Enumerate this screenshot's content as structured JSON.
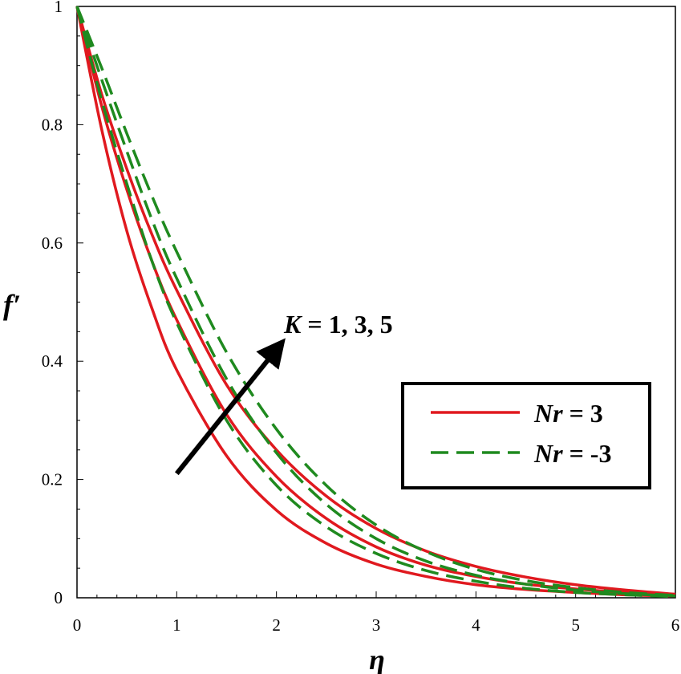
{
  "chart_data": {
    "type": "line",
    "xlabel": "η",
    "ylabel": "f′",
    "xlim": [
      0,
      6
    ],
    "ylim": [
      0,
      1
    ],
    "x_ticks": [
      "0",
      "1",
      "2",
      "3",
      "4",
      "5",
      "6"
    ],
    "y_ticks": [
      "0",
      "0.2",
      "0.4",
      "0.6",
      "0.8",
      "1"
    ],
    "grid": false,
    "legend_position": "right",
    "annotation": {
      "italic_part": "K",
      "rest": " = 1, 3, 5",
      "arrow_from": [
        1.0,
        0.21
      ],
      "arrow_to": [
        2.0,
        0.42
      ]
    },
    "colors": {
      "Nr = 3": "#e0191f",
      "Nr = -3": "#1f8a1f"
    },
    "x": [
      0,
      0.25,
      0.5,
      0.75,
      1,
      1.5,
      2,
      2.5,
      3,
      3.5,
      4,
      4.5,
      5,
      5.5,
      6
    ],
    "series": [
      {
        "name": "Nr = 3",
        "K": 1,
        "style": "solid",
        "values": [
          1.0,
          0.79,
          0.62,
          0.49,
          0.385,
          0.24,
          0.148,
          0.092,
          0.057,
          0.036,
          0.022,
          0.014,
          0.009,
          0.005,
          0.003
        ]
      },
      {
        "name": "Nr = 3",
        "K": 3,
        "style": "solid",
        "values": [
          1.0,
          0.83,
          0.69,
          0.57,
          0.47,
          0.31,
          0.205,
          0.134,
          0.086,
          0.055,
          0.036,
          0.023,
          0.015,
          0.009,
          0.005
        ]
      },
      {
        "name": "Nr = 3",
        "K": 5,
        "style": "solid",
        "values": [
          1.0,
          0.85,
          0.725,
          0.615,
          0.52,
          0.36,
          0.25,
          0.172,
          0.117,
          0.079,
          0.053,
          0.035,
          0.022,
          0.013,
          0.006
        ]
      },
      {
        "name": "Nr = -3",
        "K": 1,
        "style": "dashed",
        "values": [
          1.0,
          0.84,
          0.7,
          0.57,
          0.465,
          0.3,
          0.19,
          0.12,
          0.075,
          0.046,
          0.028,
          0.016,
          0.009,
          0.005,
          0.002
        ]
      },
      {
        "name": "Nr = -3",
        "K": 3,
        "style": "dashed",
        "values": [
          1.0,
          0.875,
          0.755,
          0.64,
          0.54,
          0.37,
          0.245,
          0.158,
          0.1,
          0.062,
          0.038,
          0.023,
          0.013,
          0.007,
          0.003
        ]
      },
      {
        "name": "Nr = -3",
        "K": 5,
        "style": "dashed",
        "values": [
          1.0,
          0.895,
          0.785,
          0.68,
          0.585,
          0.415,
          0.285,
          0.19,
          0.123,
          0.078,
          0.048,
          0.029,
          0.017,
          0.009,
          0.004
        ]
      }
    ],
    "legend": [
      {
        "name": "Nr = 3",
        "italic_part": "Nr",
        "rest": " = 3",
        "style": "solid"
      },
      {
        "name": "Nr = -3",
        "italic_part": "Nr",
        "rest": " = -3",
        "style": "dashed"
      }
    ]
  }
}
